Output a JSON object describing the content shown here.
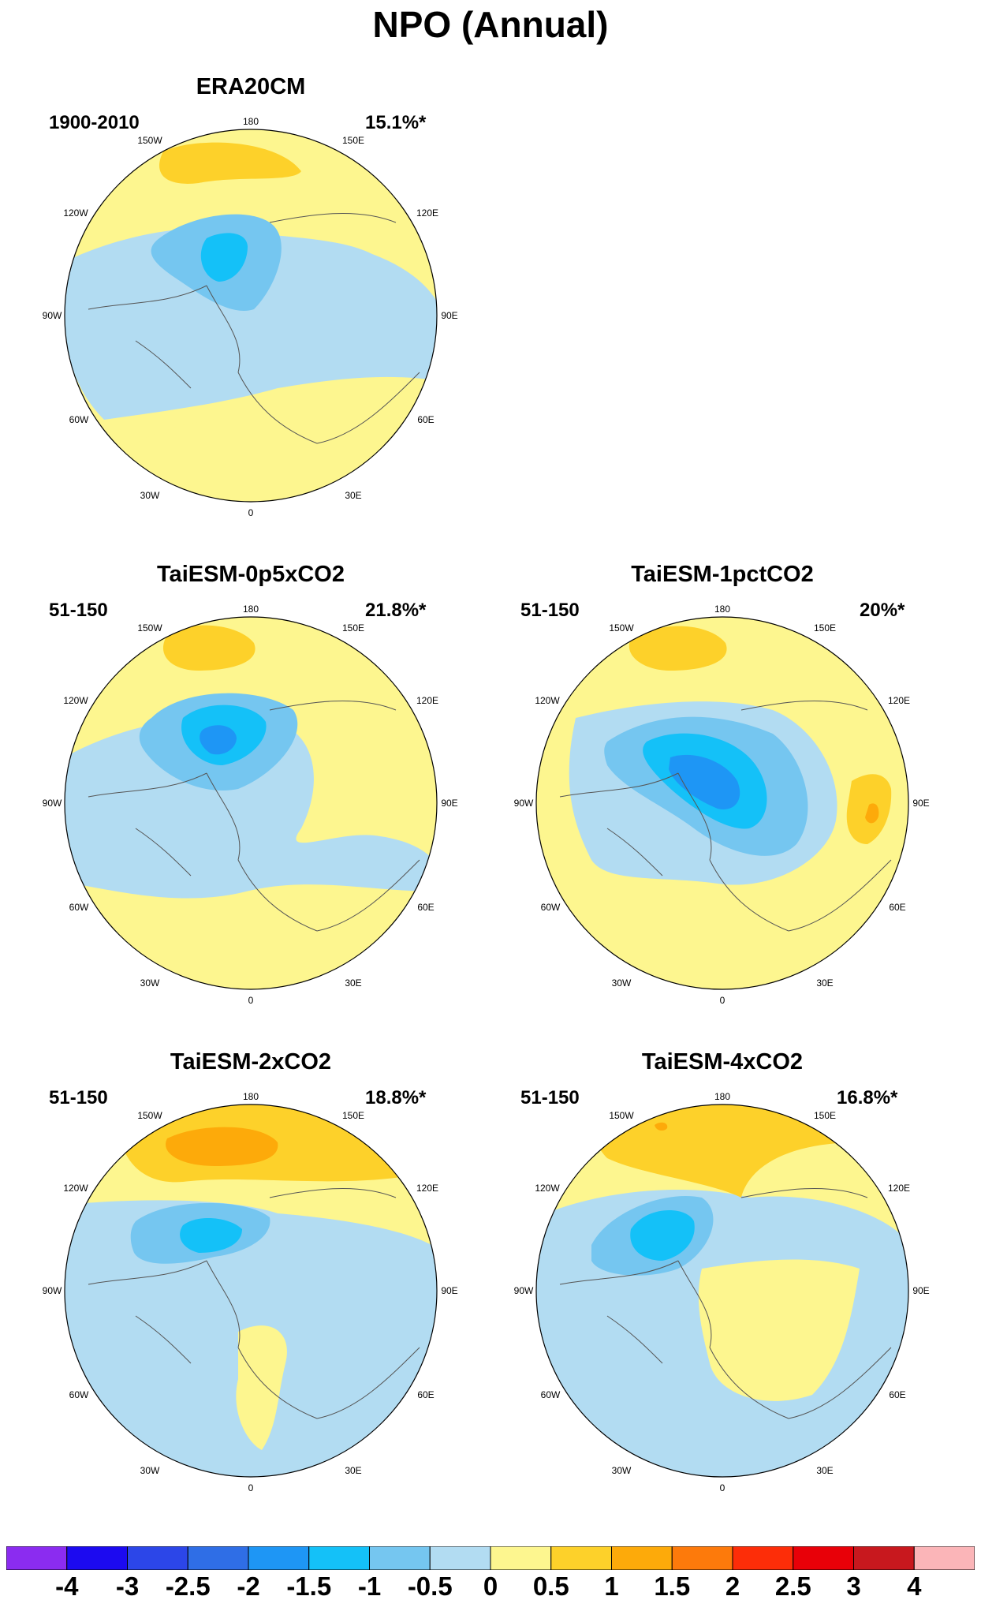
{
  "title": "NPO (Annual)",
  "longitude_labels": {
    "top": "180",
    "upper_left": "150W",
    "upper_right": "150E",
    "mid_left": "120W",
    "mid_right": "120E",
    "left": "90W",
    "right": "90E",
    "lower_left": "60W",
    "lower_right": "60E",
    "bottom_left": "30W",
    "bottom_right": "30E",
    "bottom": "0"
  },
  "panels": [
    {
      "id": "era20cm",
      "title": "ERA20CM",
      "period": "1900-2010",
      "variance": "15.1%*"
    },
    {
      "id": "0p5xco2",
      "title": "TaiESM-0p5xCO2",
      "period": "51-150",
      "variance": "21.8%*"
    },
    {
      "id": "1pctco2",
      "title": "TaiESM-1pctCO2",
      "period": "51-150",
      "variance": "20%*"
    },
    {
      "id": "2xco2",
      "title": "TaiESM-2xCO2",
      "period": "51-150",
      "variance": "18.8%*"
    },
    {
      "id": "4xco2",
      "title": "TaiESM-4xCO2",
      "period": "51-150",
      "variance": "16.8%*"
    }
  ],
  "colorbar": {
    "colors": [
      "#8b2cf0",
      "#1c0af0",
      "#2c46e8",
      "#2f6ee6",
      "#1e96f5",
      "#14c1f8",
      "#75c6f0",
      "#b2dcf2",
      "#fdf68f",
      "#fdd12a",
      "#fdaa0a",
      "#fd7a0b",
      "#fd2d08",
      "#e80008",
      "#c8181e",
      "#fbb5b8"
    ],
    "labels": [
      "-4",
      "-3",
      "-2.5",
      "-2",
      "-1.5",
      "-1",
      "-0.5",
      "0",
      "0.5",
      "1",
      "1.5",
      "2",
      "2.5",
      "3",
      "4"
    ]
  },
  "palette": {
    "pos_low": "#fdf68f",
    "pos_mid": "#fdd12a",
    "pos_high": "#fdaa0a",
    "pos_peak": "#fd7a0b",
    "neg_low": "#b2dcf2",
    "neg_mid": "#75c6f0",
    "neg_high": "#14c1f8",
    "neg_peak": "#1e96f5",
    "coast": "#555555"
  }
}
